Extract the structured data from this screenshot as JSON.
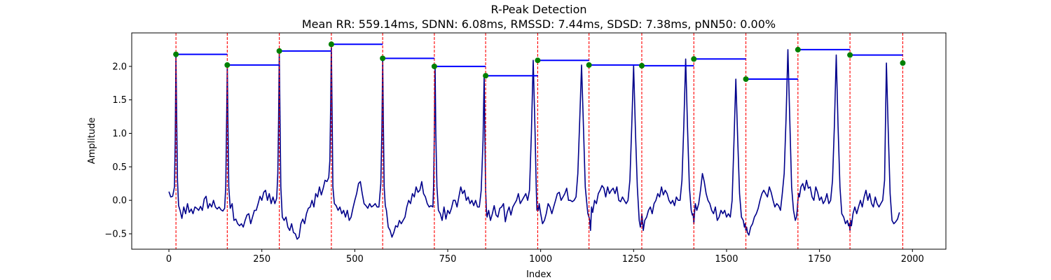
{
  "chart_data": {
    "type": "line",
    "title": "R-Peak Detection",
    "subtitle": "Mean RR: 559.14ms, SDNN: 6.08ms, RMSSD: 7.44ms, SDSD: 7.38ms, pNN50: 0.00%",
    "xlabel": "Index",
    "ylabel": "Amplitude",
    "xlim": [
      -100,
      2090
    ],
    "ylim": [
      -0.73,
      2.5
    ],
    "xticks": [
      0,
      250,
      500,
      750,
      1000,
      1250,
      1500,
      1750,
      2000
    ],
    "xtick_labels": [
      "0",
      "250",
      "500",
      "750",
      "1000",
      "1250",
      "1500",
      "1750",
      "2000"
    ],
    "yticks": [
      -0.5,
      0.0,
      0.5,
      1.0,
      1.5,
      2.0
    ],
    "ytick_labels": [
      "−0.5",
      "0.0",
      "0.5",
      "1.0",
      "1.5",
      "2.0"
    ],
    "grid": false,
    "peaks": {
      "x": [
        19,
        157,
        297,
        437,
        575,
        714,
        852,
        992,
        1130,
        1272,
        1412,
        1552,
        1692,
        1832,
        1974
      ],
      "y": [
        2.18,
        2.02,
        2.23,
        2.33,
        2.12,
        2.0,
        1.86,
        2.09,
        2.02,
        2.01,
        2.11,
        1.81,
        2.25,
        2.17,
        2.05
      ]
    },
    "signal_x": [
      0,
      5,
      10,
      15,
      17,
      19,
      21,
      23,
      26,
      30,
      35,
      40,
      45,
      50,
      55,
      60,
      65,
      70,
      75,
      80,
      85,
      90,
      95,
      100,
      105,
      110,
      115,
      120,
      125,
      130,
      135,
      140,
      145,
      150,
      153,
      155,
      157,
      159,
      161,
      165,
      170,
      175,
      180,
      185,
      190,
      195,
      200,
      205,
      210,
      215,
      220,
      225,
      230,
      235,
      240,
      245,
      250,
      255,
      260,
      265,
      270,
      275,
      280,
      285,
      290,
      293,
      295,
      297,
      299,
      301,
      305,
      310,
      315,
      320,
      325,
      330,
      335,
      340,
      345,
      350,
      355,
      360,
      365,
      370,
      375,
      380,
      385,
      390,
      395,
      400,
      405,
      410,
      415,
      420,
      425,
      430,
      433,
      435,
      437,
      439,
      441,
      445,
      450,
      455,
      460,
      465,
      470,
      475,
      480,
      485,
      490,
      495,
      500,
      505,
      510,
      515,
      520,
      525,
      530,
      535,
      540,
      545,
      550,
      555,
      560,
      565,
      570,
      573,
      575,
      577,
      579,
      582,
      585,
      590,
      595,
      600,
      605,
      610,
      615,
      620,
      625,
      630,
      635,
      640,
      645,
      650,
      655,
      660,
      665,
      670,
      675,
      680,
      685,
      690,
      695,
      700,
      705,
      710,
      712,
      714,
      716,
      718,
      721,
      725,
      730,
      735,
      740,
      745,
      750,
      755,
      760,
      765,
      770,
      775,
      780,
      785,
      790,
      795,
      800,
      805,
      810,
      815,
      820,
      825,
      830,
      835,
      840,
      845,
      848,
      850,
      852,
      854,
      856,
      860,
      865,
      870,
      875,
      880,
      885,
      890,
      895,
      900,
      905,
      910,
      915,
      920,
      925,
      930,
      935,
      940,
      945,
      950,
      955,
      960,
      965,
      970,
      975,
      980,
      985,
      988,
      990,
      992,
      994,
      996,
      1000,
      1005,
      1010,
      1015,
      1020,
      1025,
      1030,
      1035,
      1040,
      1045,
      1050,
      1055,
      1060,
      1065,
      1070,
      1075,
      1080,
      1085,
      1090,
      1095,
      1100,
      1105,
      1110,
      1115,
      1120,
      1125,
      1127,
      1130,
      1132,
      1134,
      1137,
      1140,
      1145,
      1150,
      1155,
      1160,
      1165,
      1170,
      1175,
      1180,
      1185,
      1190,
      1195,
      1200,
      1205,
      1210,
      1215,
      1220,
      1225,
      1230,
      1235,
      1240,
      1245,
      1250,
      1255,
      1260,
      1265,
      1268,
      1270,
      1272,
      1274,
      1276,
      1280,
      1285,
      1290,
      1295,
      1300,
      1305,
      1310,
      1315,
      1320,
      1325,
      1330,
      1335,
      1340,
      1345,
      1350,
      1355,
      1360,
      1365,
      1370,
      1375,
      1380,
      1385,
      1390,
      1395,
      1400,
      1405,
      1408,
      1410,
      1412,
      1414,
      1416,
      1420,
      1425,
      1430,
      1435,
      1440,
      1445,
      1450,
      1455,
      1460,
      1465,
      1470,
      1475,
      1480,
      1485,
      1490,
      1495,
      1500,
      1505,
      1510,
      1515,
      1520,
      1525,
      1530,
      1535,
      1540,
      1545,
      1548,
      1550,
      1552,
      1554,
      1556,
      1560,
      1565,
      1570,
      1575,
      1580,
      1585,
      1590,
      1595,
      1600,
      1605,
      1610,
      1615,
      1620,
      1625,
      1630,
      1635,
      1640,
      1645,
      1650,
      1655,
      1660,
      1665,
      1670,
      1675,
      1680,
      1685,
      1688,
      1690,
      1692,
      1694,
      1696,
      1700,
      1705,
      1710,
      1715,
      1720,
      1725,
      1730,
      1735,
      1740,
      1745,
      1750,
      1755,
      1760,
      1765,
      1770,
      1775,
      1780,
      1785,
      1790,
      1795,
      1800,
      1805,
      1810,
      1815,
      1820,
      1825,
      1828,
      1830,
      1832,
      1834,
      1836,
      1840,
      1845,
      1850,
      1855,
      1860,
      1865,
      1870,
      1875,
      1880,
      1885,
      1890,
      1895,
      1900,
      1905,
      1910,
      1915,
      1920,
      1925,
      1930,
      1935,
      1940,
      1945,
      1950,
      1955,
      1960,
      1965,
      1968,
      1970,
      1974,
      1976,
      1978,
      1982,
      1986,
      1990,
      1995
    ],
    "signal_y": [
      0.13,
      0.05,
      0.06,
      0.2,
      0.9,
      2.18,
      1.2,
      0.3,
      -0.08,
      -0.15,
      -0.27,
      -0.1,
      -0.2,
      -0.05,
      -0.18,
      -0.13,
      -0.2,
      -0.1,
      -0.12,
      -0.15,
      -0.09,
      -0.15,
      0.02,
      0.06,
      -0.12,
      -0.05,
      -0.1,
      0.0,
      -0.1,
      -0.13,
      -0.1,
      -0.14,
      -0.16,
      -0.12,
      0.2,
      1.1,
      2.02,
      1.1,
      0.2,
      -0.12,
      -0.05,
      -0.3,
      -0.28,
      -0.35,
      -0.38,
      -0.35,
      -0.4,
      -0.3,
      -0.22,
      -0.2,
      -0.35,
      -0.25,
      -0.15,
      -0.15,
      -0.05,
      0.06,
      0.0,
      0.12,
      0.15,
      0.0,
      0.1,
      -0.05,
      0.05,
      -0.05,
      0.03,
      0.4,
      1.2,
      2.23,
      1.2,
      0.2,
      -0.25,
      -0.3,
      -0.25,
      -0.4,
      -0.45,
      -0.35,
      -0.48,
      -0.5,
      -0.58,
      -0.55,
      -0.35,
      -0.28,
      -0.35,
      -0.2,
      -0.12,
      -0.1,
      0.0,
      -0.1,
      0.1,
      0.05,
      0.2,
      0.08,
      0.18,
      0.3,
      0.28,
      0.34,
      0.6,
      1.4,
      2.33,
      1.3,
      0.2,
      -0.05,
      -0.08,
      -0.15,
      -0.1,
      -0.2,
      -0.15,
      -0.25,
      -0.15,
      -0.3,
      -0.25,
      -0.12,
      0.0,
      0.1,
      0.25,
      0.28,
      0.1,
      -0.05,
      -0.08,
      -0.12,
      -0.05,
      -0.1,
      -0.08,
      -0.05,
      -0.1,
      -0.1,
      0.25,
      1.1,
      2.12,
      1.1,
      0.2,
      -0.08,
      -0.15,
      -0.4,
      -0.45,
      -0.55,
      -0.48,
      -0.38,
      -0.4,
      -0.3,
      -0.35,
      -0.3,
      -0.25,
      -0.1,
      0.0,
      -0.05,
      0.1,
      0.05,
      0.2,
      0.12,
      0.15,
      0.28,
      0.1,
      0.05,
      -0.05,
      -0.1,
      -0.08,
      -0.1,
      0.2,
      1.0,
      2.0,
      1.0,
      0.2,
      -0.15,
      -0.2,
      -0.3,
      -0.1,
      -0.28,
      -0.15,
      -0.2,
      -0.12,
      0.0,
      0.0,
      -0.1,
      0.05,
      0.2,
      0.1,
      0.15,
      0.0,
      0.05,
      -0.05,
      0.0,
      -0.08,
      0.0,
      -0.1,
      -0.1,
      0.15,
      0.9,
      1.86,
      0.9,
      0.15,
      -0.15,
      -0.25,
      -0.15,
      -0.3,
      -0.2,
      -0.08,
      -0.22,
      -0.25,
      -0.12,
      -0.1,
      -0.05,
      -0.32,
      -0.18,
      -0.1,
      -0.22,
      -0.1,
      -0.05,
      0.0,
      0.1,
      -0.05,
      0.0,
      0.05,
      0.1,
      0.0,
      0.15,
      1.0,
      2.09,
      1.0,
      0.2,
      -0.15,
      -0.1,
      -0.15,
      -0.05,
      -0.2,
      -0.35,
      -0.3,
      -0.2,
      -0.05,
      -0.1,
      -0.2,
      -0.1,
      0.0,
      0.1,
      0.12,
      0.0,
      0.05,
      0.1,
      0.18,
      0.0,
      0.0,
      -0.02,
      0.0,
      0.05,
      0.4,
      1.2,
      2.02,
      1.1,
      0.2,
      -0.1,
      -0.2,
      -0.25,
      -0.3,
      -0.45,
      -0.1,
      -0.18,
      0.0,
      -0.05,
      0.1,
      0.15,
      0.22,
      0.18,
      0.05,
      0.2,
      0.1,
      0.15,
      0.18,
      0.1,
      0.2,
      0.0,
      -0.02,
      0.05,
      0.0,
      -0.05,
      0.0,
      0.3,
      1.1,
      2.01,
      1.0,
      0.2,
      -0.3,
      -0.4,
      -0.35,
      -0.2,
      -0.3,
      -0.45,
      -0.3,
      -0.25,
      -0.15,
      -0.1,
      -0.2,
      -0.05,
      0.0,
      0.1,
      0.05,
      0.2,
      0.08,
      0.15,
      0.1,
      0.0,
      -0.05,
      0.0,
      -0.08,
      0.05,
      0.0,
      0.0,
      0.3,
      1.1,
      2.11,
      1.1,
      0.2,
      -0.15,
      -0.22,
      -0.2,
      -0.35,
      -0.18,
      -0.05,
      -0.15,
      -0.05,
      0.15,
      0.4,
      0.28,
      0.1,
      0.0,
      -0.05,
      -0.15,
      -0.2,
      -0.1,
      -0.3,
      -0.25,
      -0.15,
      -0.2,
      -0.15,
      -0.25,
      -0.2,
      -0.25,
      0.0,
      0.9,
      1.81,
      0.9,
      0.1,
      -0.25,
      -0.3,
      -0.4,
      -0.35,
      -0.45,
      -0.4,
      -0.48,
      -0.52,
      -0.4,
      -0.35,
      -0.25,
      -0.2,
      -0.12,
      0.0,
      0.1,
      0.15,
      0.1,
      0.05,
      0.2,
      0.12,
      0.0,
      -0.1,
      -0.05,
      -0.08,
      -0.15,
      0.1,
      0.4,
      1.2,
      2.25,
      1.2,
      0.2,
      -0.15,
      -0.3,
      -0.25,
      -0.15,
      0.0,
      0.1,
      0.05,
      0.2,
      0.25,
      0.15,
      0.3,
      0.18,
      0.2,
      0.05,
      0.0,
      0.2,
      0.12,
      0.0,
      0.05,
      -0.05,
      0.0,
      0.1,
      -0.05,
      0.0,
      0.3,
      1.1,
      2.17,
      1.1,
      0.2,
      -0.2,
      -0.25,
      -0.35,
      -0.3,
      -0.38,
      -0.35,
      -0.45,
      -0.3,
      -0.38,
      -0.2,
      -0.1,
      -0.2,
      -0.1,
      0.0,
      -0.1,
      0.05,
      0.15,
      0.0,
      0.1,
      -0.05,
      -0.1,
      0.05,
      -0.05,
      -0.1,
      -0.05,
      0.0,
      0.3,
      2.05,
      1.0,
      0.1,
      -0.3,
      -0.35,
      -0.32,
      -0.28,
      -0.18
    ]
  },
  "colors": {
    "signal": "#00008b",
    "peak_line": "#ff0000",
    "peak_marker": "#008000",
    "rr_line": "#0000ff"
  }
}
